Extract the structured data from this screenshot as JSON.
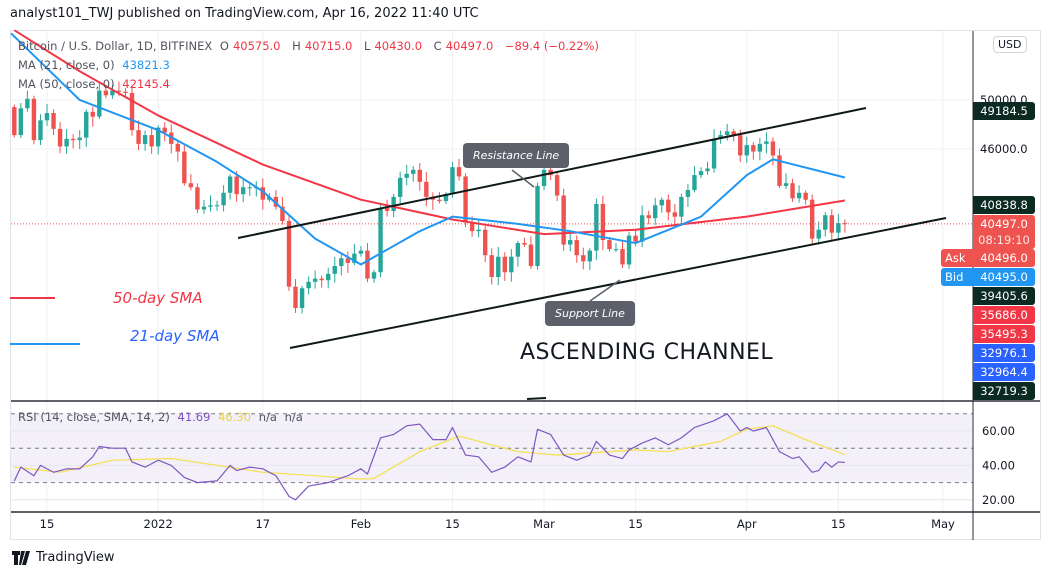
{
  "header": {
    "published": "analyst101_TWJ published on TradingView.com, Apr 16, 2022 11:40 UTC"
  },
  "legend": {
    "symbol": "Bitcoin / U.S. Dollar, 1D, BITFINEX",
    "o_label": "O",
    "o": "40575.0",
    "h_label": "H",
    "h": "40715.0",
    "l_label": "L",
    "l": "40430.0",
    "c_label": "C",
    "c": "40497.0",
    "change": "−89.4 (−0.22%)",
    "ma21_label": "MA (21, close, 0)",
    "ma21_value": "43821.3",
    "ma50_label": "MA (50, close, 0)",
    "ma50_value": "42145.4",
    "rsi_label": "RSI (14, close, SMA, 14, 2)",
    "rsi_value": "41.69",
    "rsi_sma_value": "46.30",
    "rsi_na1": "n/a",
    "rsi_na2": "n/a"
  },
  "price_axis": {
    "currency": "USD",
    "scale": "log",
    "labels": [
      "50000.0",
      "46000.0"
    ],
    "tags": [
      {
        "text": "49184.5",
        "color": "#0a2a22"
      },
      {
        "text": "40838.8",
        "color": "#0a2a22"
      },
      {
        "text": "40497.0",
        "sub": "08:19:10",
        "color": "#ef5350"
      },
      {
        "text": "40496.0",
        "side": "Ask",
        "color": "#ef5350"
      },
      {
        "text": "40495.0",
        "side": "Bid",
        "color": "#2196f3"
      },
      {
        "text": "39405.6",
        "color": "#0a2a22"
      },
      {
        "text": "35686.0",
        "color": "#f23645"
      },
      {
        "text": "35495.3",
        "color": "#f23645"
      },
      {
        "text": "32976.1",
        "color": "#2962ff"
      },
      {
        "text": "32964.4",
        "color": "#2962ff"
      },
      {
        "text": "32719.3",
        "color": "#0a2a22"
      }
    ]
  },
  "rsi_axis": {
    "labels": [
      "60.00",
      "40.00",
      "20.00"
    ],
    "bands": [
      30,
      70
    ]
  },
  "time_axis": {
    "labels": [
      {
        "text": "15",
        "date": "2021-12-15"
      },
      {
        "text": "2022",
        "date": "2022-01-01"
      },
      {
        "text": "17",
        "date": "2022-01-17"
      },
      {
        "text": "Feb",
        "date": "2022-02-01"
      },
      {
        "text": "15",
        "date": "2022-02-15"
      },
      {
        "text": "Mar",
        "date": "2022-03-01"
      },
      {
        "text": "15",
        "date": "2022-03-15"
      },
      {
        "text": "Apr",
        "date": "2022-04-01"
      },
      {
        "text": "15",
        "date": "2022-04-15"
      },
      {
        "text": "May",
        "date": "2022-05-01"
      }
    ]
  },
  "annotations": {
    "resistance": "Resistance Line",
    "support": "Support Line",
    "channel": "ASCENDING CHANNEL",
    "sma50": "50-day SMA",
    "sma21": "21-day SMA"
  },
  "colors": {
    "up": "#26a69a",
    "down": "#ef5350",
    "ma21": "#2196f3",
    "ma50": "#f23645",
    "rsi": "#7e57c2",
    "rsi_sma": "#f5e05a",
    "trend": "#0f1a17"
  },
  "footer": {
    "brand": "TradingView"
  },
  "chart_data": {
    "type": "candlestick",
    "start_date": "2021-12-10",
    "first_open": 49400,
    "closes": [
      47100,
      49300,
      50100,
      46700,
      48300,
      48900,
      47600,
      46200,
      46800,
      46700,
      46900,
      49000,
      48600,
      50800,
      50400,
      50800,
      50700,
      50600,
      47500,
      46400,
      47100,
      46200,
      47700,
      47300,
      46400,
      45800,
      43400,
      43100,
      41500,
      41700,
      41800,
      41800,
      42700,
      43900,
      42600,
      43100,
      43100,
      43100,
      42200,
      42400,
      41700,
      40700,
      36400,
      35100,
      36300,
      36700,
      36900,
      36800,
      37200,
      37700,
      38200,
      37900,
      38500,
      38700,
      36900,
      37300,
      41600,
      41400,
      42400,
      43800,
      44100,
      44400,
      43500,
      42400,
      42200,
      42100,
      42600,
      44600,
      43900,
      40600,
      40000,
      40100,
      38400,
      37000,
      38300,
      37300,
      38300,
      39200,
      39100,
      37700,
      43200,
      44400,
      44000,
      42500,
      39100,
      39400,
      38400,
      38000,
      38700,
      41900,
      39400,
      38800,
      38800,
      37800,
      39700,
      39300,
      41100,
      40900,
      41800,
      42200,
      41300,
      41000,
      42400,
      42900,
      44000,
      44300,
      44500,
      46800,
      47100,
      47400,
      47100,
      45500,
      46300,
      45800,
      46400,
      46600,
      45500,
      43200,
      43400,
      42300,
      42700,
      42200,
      39500,
      40100,
      41100,
      39900,
      40550,
      40497
    ],
    "ma50": [
      [
        "2021-12-10",
        56300
      ],
      [
        "2021-12-20",
        52500
      ],
      [
        "2022-01-01",
        48700
      ],
      [
        "2022-01-17",
        44800
      ],
      [
        "2022-02-01",
        42200
      ],
      [
        "2022-02-15",
        40800
      ],
      [
        "2022-03-01",
        39800
      ],
      [
        "2022-03-15",
        40100
      ],
      [
        "2022-04-01",
        41000
      ],
      [
        "2022-04-16",
        42145.4
      ]
    ],
    "ma21": [
      [
        "2021-12-08",
        56000
      ],
      [
        "2021-12-20",
        50000
      ],
      [
        "2022-01-01",
        47500
      ],
      [
        "2022-01-10",
        45000
      ],
      [
        "2022-01-17",
        42800
      ],
      [
        "2022-01-25",
        39500
      ],
      [
        "2022-02-01",
        37800
      ],
      [
        "2022-02-10",
        40000
      ],
      [
        "2022-02-15",
        41000
      ],
      [
        "2022-02-25",
        40500
      ],
      [
        "2022-03-05",
        40000
      ],
      [
        "2022-03-15",
        39200
      ],
      [
        "2022-03-25",
        41000
      ],
      [
        "2022-04-01",
        44000
      ],
      [
        "2022-04-05",
        45200
      ],
      [
        "2022-04-16",
        43821.3
      ]
    ],
    "rsi": [
      [
        "2021-12-10",
        31
      ],
      [
        "2021-12-11",
        39
      ],
      [
        "2021-12-13",
        34
      ],
      [
        "2021-12-14",
        40
      ],
      [
        "2021-12-16",
        36
      ],
      [
        "2021-12-18",
        38
      ],
      [
        "2021-12-20",
        38
      ],
      [
        "2021-12-22",
        45
      ],
      [
        "2021-12-23",
        51
      ],
      [
        "2021-12-25",
        50
      ],
      [
        "2021-12-27",
        50
      ],
      [
        "2021-12-28",
        42
      ],
      [
        "2021-12-30",
        39
      ],
      [
        "2022-01-01",
        43
      ],
      [
        "2022-01-03",
        40
      ],
      [
        "2022-01-05",
        33
      ],
      [
        "2022-01-07",
        30
      ],
      [
        "2022-01-10",
        31
      ],
      [
        "2022-01-12",
        40
      ],
      [
        "2022-01-13",
        37
      ],
      [
        "2022-01-15",
        39
      ],
      [
        "2022-01-17",
        38
      ],
      [
        "2022-01-19",
        34
      ],
      [
        "2022-01-21",
        22
      ],
      [
        "2022-01-22",
        20
      ],
      [
        "2022-01-24",
        28
      ],
      [
        "2022-01-27",
        30
      ],
      [
        "2022-01-30",
        34
      ],
      [
        "2022-02-01",
        38
      ],
      [
        "2022-02-02",
        35
      ],
      [
        "2022-02-04",
        56
      ],
      [
        "2022-02-06",
        58
      ],
      [
        "2022-02-08",
        63
      ],
      [
        "2022-02-10",
        64
      ],
      [
        "2022-02-12",
        55
      ],
      [
        "2022-02-14",
        55
      ],
      [
        "2022-02-15",
        62
      ],
      [
        "2022-02-17",
        46
      ],
      [
        "2022-02-19",
        45
      ],
      [
        "2022-02-21",
        36
      ],
      [
        "2022-02-23",
        39
      ],
      [
        "2022-02-25",
        45
      ],
      [
        "2022-02-27",
        42
      ],
      [
        "2022-02-28",
        61
      ],
      [
        "2022-03-02",
        58
      ],
      [
        "2022-03-04",
        46
      ],
      [
        "2022-03-06",
        43
      ],
      [
        "2022-03-08",
        46
      ],
      [
        "2022-03-09",
        54
      ],
      [
        "2022-03-11",
        46
      ],
      [
        "2022-03-13",
        44
      ],
      [
        "2022-03-14",
        49
      ],
      [
        "2022-03-16",
        53
      ],
      [
        "2022-03-18",
        56
      ],
      [
        "2022-03-20",
        52
      ],
      [
        "2022-03-22",
        56
      ],
      [
        "2022-03-24",
        62
      ],
      [
        "2022-03-27",
        66
      ],
      [
        "2022-03-29",
        70
      ],
      [
        "2022-03-31",
        60
      ],
      [
        "2022-04-01",
        62
      ],
      [
        "2022-04-02",
        60
      ],
      [
        "2022-04-04",
        62
      ],
      [
        "2022-04-06",
        48
      ],
      [
        "2022-04-08",
        44
      ],
      [
        "2022-04-09",
        45
      ],
      [
        "2022-04-11",
        36
      ],
      [
        "2022-04-12",
        37
      ],
      [
        "2022-04-13",
        42
      ],
      [
        "2022-04-14",
        39
      ],
      [
        "2022-04-15",
        42
      ],
      [
        "2022-04-16",
        41.69
      ]
    ],
    "rsi_sma": [
      [
        "2021-12-10",
        39
      ],
      [
        "2021-12-17",
        36
      ],
      [
        "2021-12-25",
        43
      ],
      [
        "2022-01-03",
        44
      ],
      [
        "2022-01-10",
        40
      ],
      [
        "2022-01-17",
        36
      ],
      [
        "2022-01-25",
        34
      ],
      [
        "2022-02-01",
        32
      ],
      [
        "2022-02-03",
        32.5
      ],
      [
        "2022-02-10",
        48
      ],
      [
        "2022-02-16",
        57
      ],
      [
        "2022-02-25",
        48
      ],
      [
        "2022-03-03",
        46
      ],
      [
        "2022-03-15",
        49
      ],
      [
        "2022-03-20",
        48
      ],
      [
        "2022-03-28",
        54
      ],
      [
        "2022-04-01",
        61
      ],
      [
        "2022-04-05",
        63
      ],
      [
        "2022-04-10",
        55
      ],
      [
        "2022-04-16",
        46.3
      ]
    ]
  }
}
